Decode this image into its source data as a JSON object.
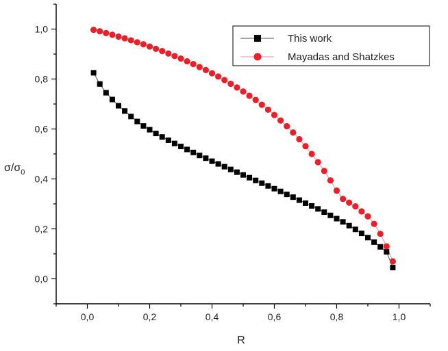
{
  "chart_data": {
    "type": "scatter",
    "xlabel": "R",
    "ylabel": "σ/σ",
    "ylabel_subscript": "0",
    "xlim": [
      -0.1,
      1.1
    ],
    "ylim": [
      -0.1,
      1.1
    ],
    "x_ticks": [
      {
        "value": 0.0,
        "label": "0,0"
      },
      {
        "value": 0.2,
        "label": "0,2"
      },
      {
        "value": 0.4,
        "label": "0,4"
      },
      {
        "value": 0.6,
        "label": "0,6"
      },
      {
        "value": 0.8,
        "label": "0,8"
      },
      {
        "value": 1.0,
        "label": "1,0"
      }
    ],
    "y_ticks": [
      {
        "value": 0.0,
        "label": "0,0"
      },
      {
        "value": 0.2,
        "label": "0,2"
      },
      {
        "value": 0.4,
        "label": "0,4"
      },
      {
        "value": 0.6,
        "label": "0,6"
      },
      {
        "value": 0.8,
        "label": "0,8"
      },
      {
        "value": 1.0,
        "label": "1,0"
      }
    ],
    "grid": false,
    "legend_position": "top-right",
    "series": [
      {
        "name": "This work",
        "color": "#000000",
        "marker": "square",
        "line_color": "#555555",
        "x": [
          0.02,
          0.04,
          0.06,
          0.08,
          0.1,
          0.12,
          0.14,
          0.16,
          0.18,
          0.2,
          0.22,
          0.24,
          0.26,
          0.28,
          0.3,
          0.32,
          0.34,
          0.36,
          0.38,
          0.4,
          0.42,
          0.44,
          0.46,
          0.48,
          0.5,
          0.52,
          0.54,
          0.56,
          0.58,
          0.6,
          0.62,
          0.64,
          0.66,
          0.68,
          0.7,
          0.72,
          0.74,
          0.76,
          0.78,
          0.8,
          0.82,
          0.84,
          0.86,
          0.88,
          0.9,
          0.92,
          0.94,
          0.96,
          0.98
        ],
        "y": [
          0.825,
          0.78,
          0.745,
          0.718,
          0.693,
          0.672,
          0.65,
          0.63,
          0.612,
          0.597,
          0.582,
          0.568,
          0.555,
          0.542,
          0.53,
          0.518,
          0.506,
          0.494,
          0.483,
          0.471,
          0.46,
          0.449,
          0.438,
          0.427,
          0.416,
          0.405,
          0.394,
          0.383,
          0.372,
          0.361,
          0.35,
          0.338,
          0.327,
          0.315,
          0.303,
          0.292,
          0.28,
          0.267,
          0.254,
          0.241,
          0.228,
          0.213,
          0.198,
          0.182,
          0.165,
          0.147,
          0.128,
          0.108,
          0.045
        ]
      },
      {
        "name": "Mayadas and Shatzkes",
        "color": "#e8202a",
        "marker": "circle",
        "line_color": "#e89090",
        "x": [
          0.02,
          0.04,
          0.06,
          0.08,
          0.1,
          0.12,
          0.14,
          0.16,
          0.18,
          0.2,
          0.22,
          0.24,
          0.26,
          0.28,
          0.3,
          0.32,
          0.34,
          0.36,
          0.38,
          0.4,
          0.42,
          0.44,
          0.46,
          0.48,
          0.5,
          0.52,
          0.54,
          0.56,
          0.58,
          0.6,
          0.62,
          0.64,
          0.66,
          0.68,
          0.7,
          0.72,
          0.74,
          0.76,
          0.78,
          0.8,
          0.82,
          0.84,
          0.86,
          0.88,
          0.9,
          0.92,
          0.94,
          0.96,
          0.98
        ],
        "y": [
          0.997,
          0.991,
          0.984,
          0.977,
          0.97,
          0.963,
          0.955,
          0.947,
          0.939,
          0.93,
          0.921,
          0.912,
          0.902,
          0.892,
          0.882,
          0.871,
          0.86,
          0.848,
          0.836,
          0.823,
          0.81,
          0.796,
          0.781,
          0.766,
          0.75,
          0.733,
          0.716,
          0.697,
          0.677,
          0.656,
          0.634,
          0.611,
          0.586,
          0.559,
          0.531,
          0.5,
          0.467,
          0.432,
          0.394,
          0.353,
          0.32,
          0.305,
          0.29,
          0.27,
          0.25,
          0.22,
          0.18,
          0.13,
          0.07
        ]
      }
    ]
  }
}
